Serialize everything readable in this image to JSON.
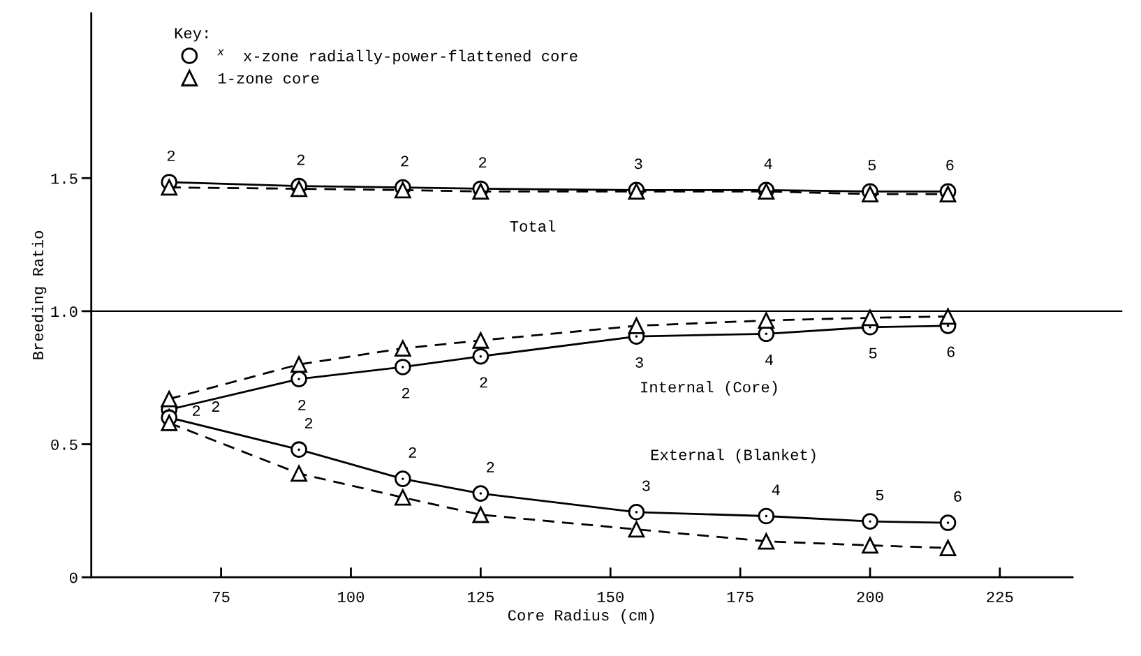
{
  "chart_data": {
    "type": "line",
    "xlabel": "Core Radius (cm)",
    "ylabel": "Breeding Ratio",
    "x": [
      65,
      90,
      110,
      125,
      155,
      180,
      200,
      215
    ],
    "series": [
      {
        "name": "$^{x}$  x-zone radially-power-flattened core",
        "color": "#000000",
        "marker": "circle",
        "line_style": "solid",
        "values": [
          1.485,
          1.47,
          1.465,
          1.46,
          1.455,
          1.455,
          1.45,
          1.45
        ]
      },
      {
        "name": "1-zone core",
        "color": "#000000",
        "marker": "triangle",
        "line_style": "dashed",
        "values": [
          1.465,
          1.46,
          1.455,
          1.45,
          1.45,
          1.45,
          1.44,
          1.44
        ]
      },
      {
        "color": "#000000",
        "marker": "circle",
        "line_style": "solid",
        "values": [
          0.63,
          0.745,
          0.79,
          0.83,
          0.905,
          0.915,
          0.94,
          0.945
        ]
      },
      {
        "color": "#000000",
        "marker": "triangle",
        "line_style": "dashed",
        "values": [
          0.67,
          0.8,
          0.86,
          0.89,
          0.945,
          0.965,
          0.975,
          0.98
        ]
      },
      {
        "color": "#000000",
        "marker": "circle",
        "line_style": "solid",
        "values": [
          0.6,
          0.48,
          0.37,
          0.315,
          0.245,
          0.23,
          0.21,
          0.205
        ]
      },
      {
        "color": "#000000",
        "marker": "triangle",
        "line_style": "dashed",
        "values": [
          0.58,
          0.39,
          0.3,
          0.235,
          0.18,
          0.135,
          0.12,
          0.11
        ]
      }
    ],
    "xlim": [
      50,
      239
    ],
    "ylim": [
      0,
      2.12
    ],
    "xticks": [
      75,
      100,
      125,
      150,
      175,
      200,
      225
    ],
    "yticks": [
      0,
      {
        "value": 0.5,
        "label": "0.5"
      },
      {
        "value": 1.0,
        "label": "1.0"
      },
      {
        "value": 1.5,
        "label": "1.5"
      }
    ],
    "ref_lines": [
      {
        "axis": "y",
        "value": 1.0,
        "color": "#000000",
        "line_style": "solid"
      }
    ],
    "legend": "top left",
    "legend_title": "Key:",
    "grid": false,
    "annotations": [
      "Total",
      "Internal (Core)",
      "External (Blanket)",
      {
        "text": "2",
        "x": 65,
        "y": 1.485
      },
      {
        "text": "2",
        "x": 90,
        "y": 1.47
      },
      {
        "text": "2",
        "x": 110,
        "y": 1.465
      },
      {
        "text": "2",
        "x": 125,
        "y": 1.46
      },
      {
        "text": "3",
        "x": 155,
        "y": 1.455
      },
      {
        "text": "4",
        "x": 180,
        "y": 1.455
      },
      {
        "text": "5",
        "x": 200,
        "y": 1.45
      },
      {
        "text": "6",
        "x": 215,
        "y": 1.45
      },
      {
        "text": "2",
        "x": 65,
        "y": 0.63
      },
      {
        "text": "2",
        "x": 90,
        "y": 0.745
      },
      {
        "text": "2",
        "x": 110,
        "y": 0.79
      },
      {
        "text": "2",
        "x": 125,
        "y": 0.83
      },
      {
        "text": "3",
        "x": 155,
        "y": 0.905
      },
      {
        "text": "4",
        "x": 180,
        "y": 0.915
      },
      {
        "text": "5",
        "x": 200,
        "y": 0.94
      },
      {
        "text": "6",
        "x": 215,
        "y": 0.945
      },
      {
        "text": "2",
        "x": 65,
        "y": 0.6
      },
      {
        "text": "2",
        "x": 90,
        "y": 0.48
      },
      {
        "text": "2",
        "x": 110,
        "y": 0.37
      },
      {
        "text": "2",
        "x": 125,
        "y": 0.315
      },
      {
        "text": "3",
        "x": 155,
        "y": 0.245
      },
      {
        "text": "4",
        "x": 180,
        "y": 0.23
      },
      {
        "text": "5",
        "x": 200,
        "y": 0.21
      },
      {
        "text": "6",
        "x": 215,
        "y": 0.205
      }
    ]
  }
}
